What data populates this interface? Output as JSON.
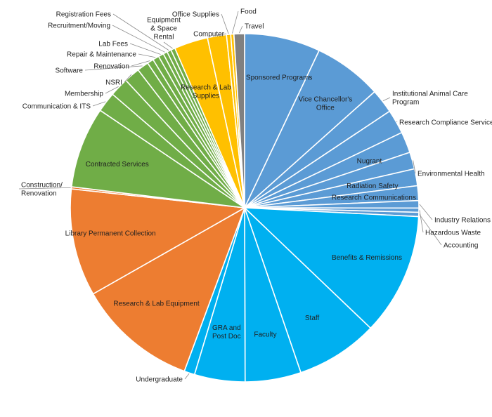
{
  "chart_data": {
    "type": "pie",
    "title": "",
    "slices": [
      {
        "label": "Sponsored Programs",
        "value": 7.2,
        "color": "#5b9bd5",
        "label_mode": "inside"
      },
      {
        "label": "Vice Chancellor's\nOffice",
        "value": 6.5,
        "color": "#5b9bd5",
        "label_mode": "inside"
      },
      {
        "label": "Institutional Animal Care\nProgram",
        "value": 2.3,
        "color": "#5b9bd5",
        "label_mode": "outside"
      },
      {
        "label": "Research Compliance Services",
        "value": 2.3,
        "color": "#5b9bd5",
        "label_mode": "outside"
      },
      {
        "label": "Nugrant",
        "value": 2.0,
        "color": "#5b9bd5",
        "label_mode": "inside"
      },
      {
        "label": "Environmental Health",
        "value": 1.6,
        "color": "#5b9bd5",
        "label_mode": "outside"
      },
      {
        "label": "Radiation Safety",
        "value": 1.6,
        "color": "#5b9bd5",
        "label_mode": "inside"
      },
      {
        "label": "Research Communications",
        "value": 1.4,
        "color": "#5b9bd5",
        "label_mode": "inside"
      },
      {
        "label": "Industry Relations",
        "value": 0.7,
        "color": "#5b9bd5",
        "label_mode": "outside"
      },
      {
        "label": "Hazardous Waste",
        "value": 0.4,
        "color": "#5b9bd5",
        "label_mode": "outside"
      },
      {
        "label": "Accounting",
        "value": 0.4,
        "color": "#5b9bd5",
        "label_mode": "outside"
      },
      {
        "label": "Benefits & Remissions",
        "value": 11.6,
        "color": "#00b0f0",
        "label_mode": "inside"
      },
      {
        "label": "Staff",
        "value": 7.8,
        "color": "#00b0f0",
        "label_mode": "inside"
      },
      {
        "label": "Faculty",
        "value": 5.3,
        "color": "#00b0f0",
        "label_mode": "inside"
      },
      {
        "label": "GRA and\nPost Doc",
        "value": 4.8,
        "color": "#00b0f0",
        "label_mode": "inside"
      },
      {
        "label": "Undergraduate",
        "value": 1.0,
        "color": "#00b0f0",
        "label_mode": "outside"
      },
      {
        "label": "Research & Lab Equipment",
        "value": 11.4,
        "color": "#ed7d31",
        "label_mode": "inside"
      },
      {
        "label": "Library Permanent Collection",
        "value": 10.2,
        "color": "#ed7d31",
        "label_mode": "inside"
      },
      {
        "label": "Construction/\nRenovation",
        "value": 0.2,
        "color": "#ed7d31",
        "label_mode": "outside"
      },
      {
        "label": "Contracted Services",
        "value": 7.7,
        "color": "#70ad47",
        "label_mode": "inside"
      },
      {
        "label": "Communication & ITS",
        "value": 1.9,
        "color": "#70ad47",
        "label_mode": "outside"
      },
      {
        "label": "Membership",
        "value": 1.8,
        "color": "#70ad47",
        "label_mode": "outside"
      },
      {
        "label": "NSRI",
        "value": 1.5,
        "color": "#70ad47",
        "label_mode": "outside"
      },
      {
        "label": "Software",
        "value": 1.1,
        "color": "#70ad47",
        "label_mode": "outside"
      },
      {
        "label": "Renovation",
        "value": 0.6,
        "color": "#70ad47",
        "label_mode": "outside"
      },
      {
        "label": "Repair & Maintenance",
        "value": 0.6,
        "color": "#70ad47",
        "label_mode": "outside"
      },
      {
        "label": "Lab Fees",
        "value": 0.5,
        "color": "#70ad47",
        "label_mode": "outside"
      },
      {
        "label": "Recruitment/Moving",
        "value": 0.4,
        "color": "#70ad47",
        "label_mode": "outside"
      },
      {
        "label": "Registration Fees",
        "value": 0.4,
        "color": "#70ad47",
        "label_mode": "outside"
      },
      {
        "label": "Equipment\n& Space\nRental",
        "value": 0.4,
        "color": "#70ad47",
        "label_mode": "outside"
      },
      {
        "label": "Research & Lab\nSupplies",
        "value": 3.2,
        "color": "#ffc000",
        "label_mode": "inside"
      },
      {
        "label": "Computer",
        "value": 1.8,
        "color": "#ffc000",
        "label_mode": "outside"
      },
      {
        "label": "Office Supplies",
        "value": 0.4,
        "color": "#ffc000",
        "label_mode": "outside"
      },
      {
        "label": "Food",
        "value": 0.3,
        "color": "#ffc000",
        "label_mode": "outside"
      },
      {
        "label": "Travel",
        "value": 1.0,
        "color": "#808080",
        "label_mode": "outside"
      }
    ]
  }
}
